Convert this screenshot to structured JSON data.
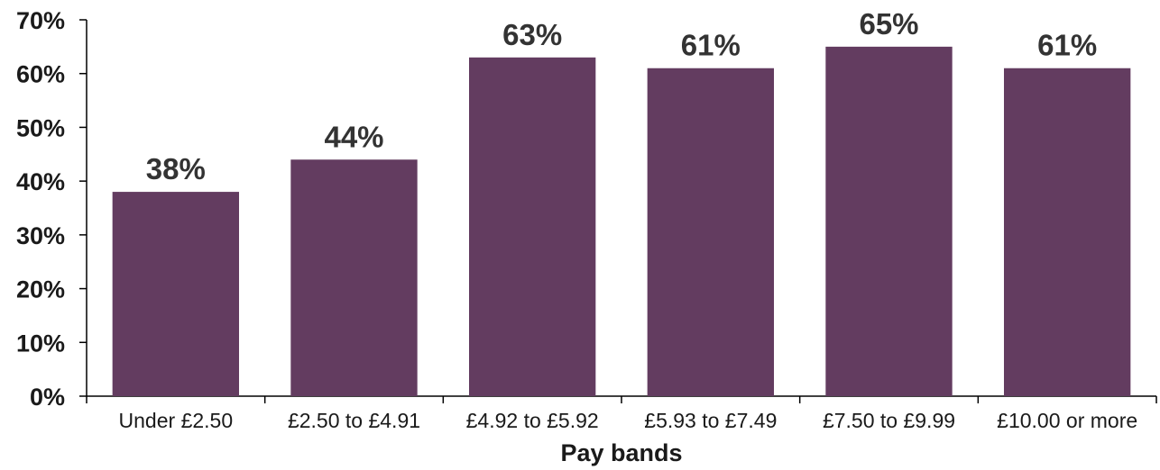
{
  "chart_data": {
    "type": "bar",
    "title": "",
    "xlabel": "Pay bands",
    "ylabel": "",
    "categories": [
      "Under £2.50",
      "£2.50 to £4.91",
      "£4.92 to £5.92",
      "£5.93 to £7.49",
      "£7.50 to £9.99",
      "£10.00 or more"
    ],
    "values": [
      38,
      44,
      63,
      61,
      65,
      61
    ],
    "data_labels": [
      "38%",
      "44%",
      "63%",
      "61%",
      "65%",
      "61%"
    ],
    "ylim": [
      0,
      70
    ],
    "y_ticks": [
      0,
      10,
      20,
      30,
      40,
      50,
      60,
      70
    ],
    "y_tick_labels": [
      "0%",
      "10%",
      "20%",
      "30%",
      "40%",
      "50%",
      "60%",
      "70%"
    ],
    "grid": false,
    "legend": "none",
    "bar_color": "#633C60"
  }
}
